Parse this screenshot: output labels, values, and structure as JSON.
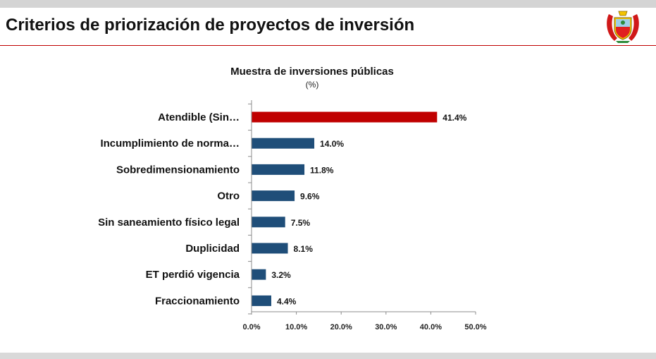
{
  "slide": {
    "title": "Criterios de priorización de proyectos de inversión"
  },
  "colors": {
    "highlight": "#c00000",
    "bar": "#1f4e79",
    "rule": "#c00000"
  },
  "chart_data": {
    "type": "bar",
    "orientation": "horizontal",
    "title": "Muestra de inversiones públicas",
    "subtitle": "(%)",
    "categories": [
      "Atendible (Sin…",
      "Incumplimiento de norma…",
      "Sobredimensionamiento",
      "Otro",
      "Sin saneamiento físico legal",
      "Duplicidad",
      "ET perdió vigencia",
      "Fraccionamiento"
    ],
    "values": [
      41.4,
      14.0,
      11.8,
      9.6,
      7.5,
      8.1,
      3.2,
      4.4
    ],
    "value_labels": [
      "41.4%",
      "14.0%",
      "11.8%",
      "9.6%",
      "7.5%",
      "8.1%",
      "3.2%",
      "4.4%"
    ],
    "highlight_index": 0,
    "xlim": [
      0,
      50
    ],
    "xticks": [
      0,
      10,
      20,
      30,
      40,
      50
    ],
    "xtick_labels": [
      "0.0%",
      "10.0%",
      "20.0%",
      "30.0%",
      "40.0%",
      "50.0%"
    ],
    "xlabel": "",
    "ylabel": "",
    "grid": false,
    "legend": "none"
  }
}
